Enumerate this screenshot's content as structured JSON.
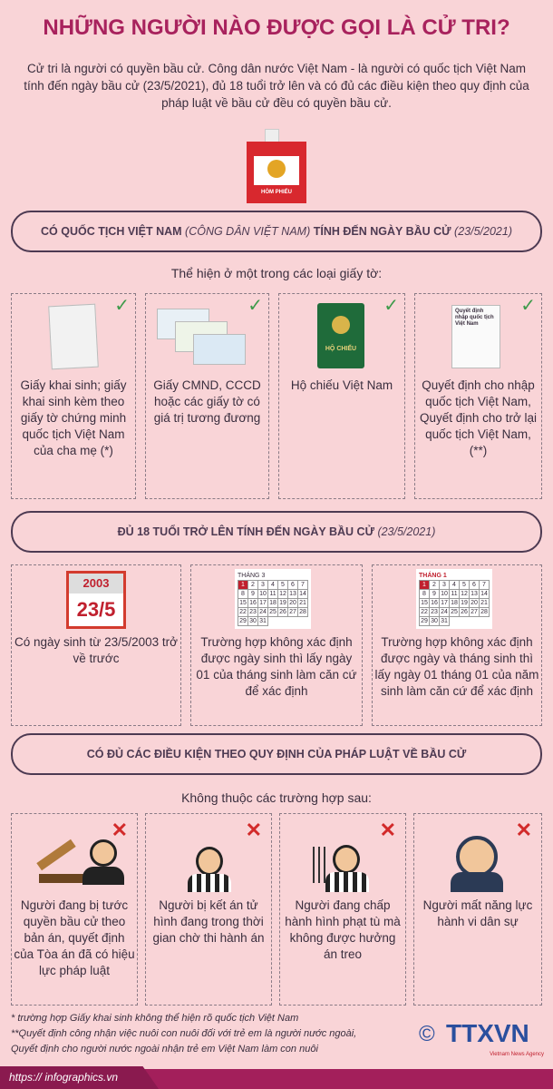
{
  "title": "NHỮNG NGƯỜI NÀO ĐƯỢC GỌI LÀ CỬ TRI?",
  "intro": "Cử tri là người có quyền bầu cử. Công dân nước Việt Nam - là người có quốc tịch Việt Nam tính đến ngày bầu cử (23/5/2021), đủ 18 tuổi trở lên và có đủ các điều kiện theo quy định của pháp luật về bầu cử đều có quyền bầu cử.",
  "ballot_box_label": "HÒM PHIẾU",
  "section1": {
    "a": "CÓ QUỐC TỊCH VIỆT NAM",
    "b": "(CÔNG DÂN VIỆT NAM)",
    "c": "TÍNH ĐẾN NGÀY BẦU CỬ",
    "d": "(23/5/2021)",
    "sub": "Thể hiện ở một trong các loại giấy tờ:",
    "items": [
      {
        "label": "Giấy khai sinh; giấy khai sinh kèm theo giấy tờ chứng minh quốc tịch Việt Nam của cha mẹ (*)",
        "icon": "birth-certificate-icon"
      },
      {
        "label": "Giấy CMND, CCCD hoặc các giấy tờ có giá trị tương đương",
        "icon": "id-card-icon"
      },
      {
        "label": "Hộ chiếu Việt Nam",
        "icon": "passport-icon",
        "passport_text": "HỘ CHIẾU"
      },
      {
        "label": "Quyết định cho nhập quốc tịch Việt Nam, Quyết định cho trở lại quốc tịch Việt Nam, (**)",
        "icon": "decision-document-icon",
        "doc_text": "Quyết định nhập quốc tịch Việt Nam"
      }
    ]
  },
  "section2": {
    "a": "ĐỦ 18 TUỔI TRỞ LÊN TÍNH ĐẾN NGÀY BẦU CỬ",
    "d": "(23/5/2021)",
    "items": [
      {
        "label": "Có ngày sinh từ 23/5/2003 trở về trước",
        "year": "2003",
        "date": "23/5"
      },
      {
        "label": "Trường hợp không xác định được ngày sinh thì lấy ngày 01 của tháng sinh làm căn cứ để xác định",
        "month": "THÁNG 3"
      },
      {
        "label": "Trường hợp không xác định được ngày và tháng sinh thì lấy ngày 01 tháng 01 của năm sinh làm căn cứ để xác định",
        "month": "THÁNG 1"
      }
    ]
  },
  "section3": {
    "a": "CÓ ĐỦ CÁC ĐIỀU KIỆN THEO QUY ĐỊNH CỦA PHÁP LUẬT VỀ BẦU CỬ",
    "sub": "Không thuộc các trường hợp sau:",
    "items": [
      {
        "label": "Người đang bị tước quyền bầu cử theo bản án, quyết định của Tòa án đã có hiệu lực pháp luật",
        "icon": "gavel-person-icon"
      },
      {
        "label": "Người bị kết án tử hình đang trong thời gian chờ thi hành án",
        "icon": "prisoner-icon"
      },
      {
        "label": "Người đang chấp hành hình phạt tù mà không được hưởng án treo",
        "icon": "prisoner-bars-icon"
      },
      {
        "label": "Người mất năng lực hành vi dân sự",
        "icon": "distressed-person-icon"
      }
    ]
  },
  "footnotes": [
    "* trường hợp Giấy khai sinh không thể hiện rõ quốc tịch Việt Nam",
    "**Quyết định công nhận việc nuôi con nuôi đối với trẻ em là người nước ngoài,",
    "Quyết định cho người nước ngoài nhận trẻ em Việt Nam làm con nuôi"
  ],
  "logo": {
    "copyright": "©",
    "name": "TTXVN",
    "tagline": "Vietnam News Agency"
  },
  "url": "https:// infographics.vn",
  "colors": {
    "background": "#f9d4d7",
    "title": "#a8225d",
    "check": "#3d9a4a",
    "cross": "#d22a2a",
    "footer": "#a31f5b"
  }
}
